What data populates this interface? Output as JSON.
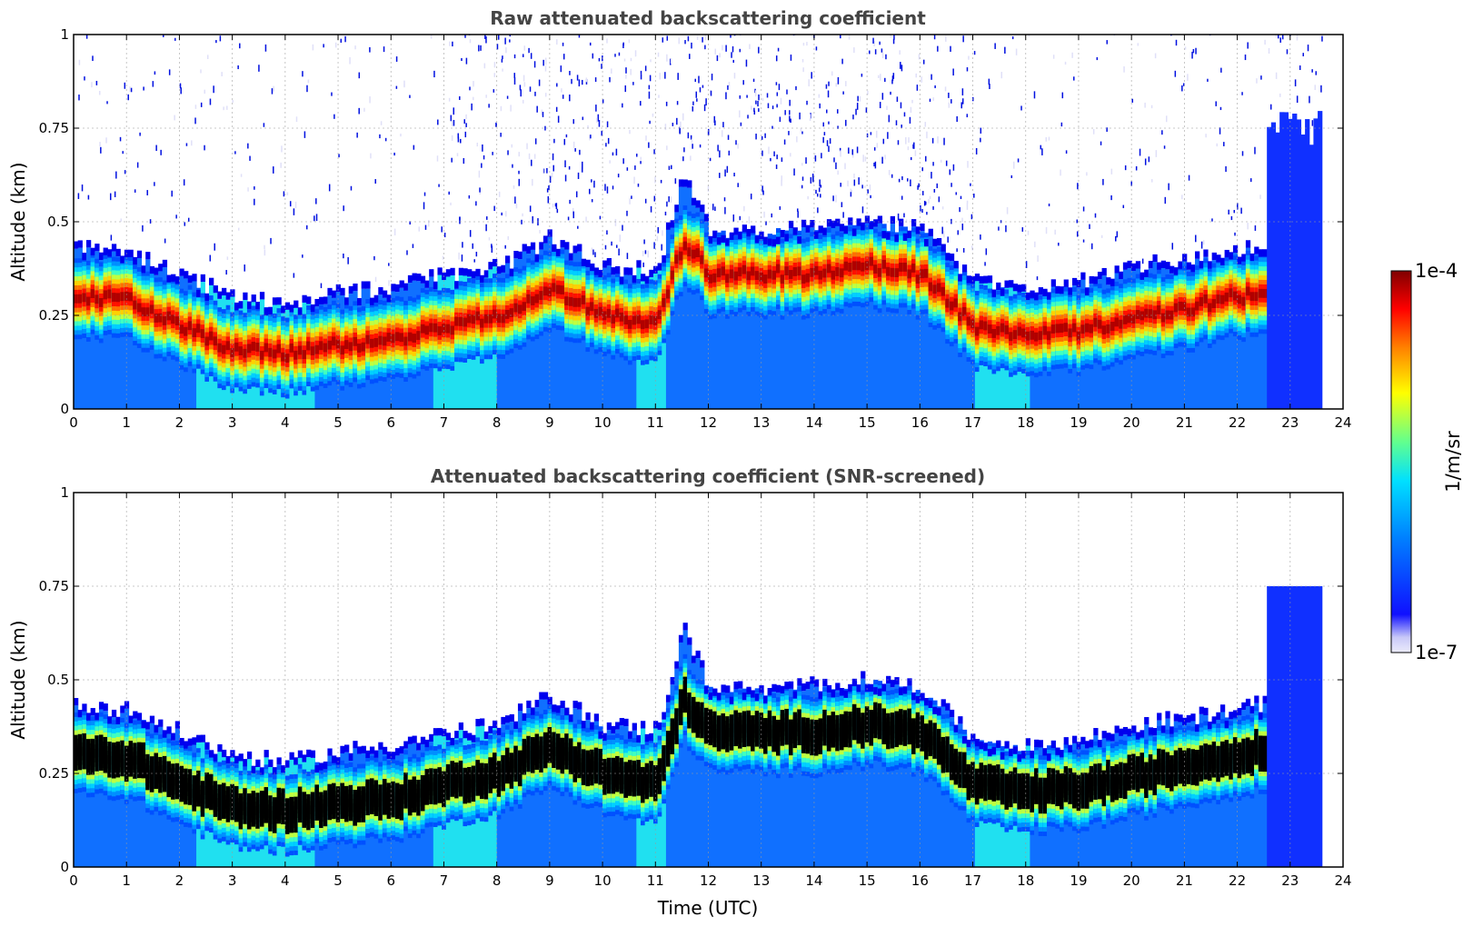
{
  "chart_data": [
    {
      "type": "heatmap",
      "title": "Raw attenuated backscattering coefficient",
      "xlabel": "",
      "ylabel": "Altitude (km)",
      "xlim": [
        0,
        24
      ],
      "ylim": [
        0,
        1
      ],
      "x_ticks": [
        "0",
        "1",
        "2",
        "3",
        "4",
        "5",
        "6",
        "7",
        "8",
        "9",
        "10",
        "11",
        "12",
        "13",
        "14",
        "15",
        "16",
        "17",
        "18",
        "19",
        "20",
        "21",
        "22",
        "23",
        "24"
      ],
      "y_ticks": [
        "0",
        "0.25",
        "0.5",
        "0.75",
        "1"
      ],
      "grid": true,
      "data_end_hour": 23.55,
      "layer_top_km": [
        {
          "t": 0,
          "km": 0.42
        },
        {
          "t": 1,
          "km": 0.4
        },
        {
          "t": 2,
          "km": 0.34
        },
        {
          "t": 3,
          "km": 0.28
        },
        {
          "t": 4,
          "km": 0.26
        },
        {
          "t": 5,
          "km": 0.29
        },
        {
          "t": 6,
          "km": 0.31
        },
        {
          "t": 7,
          "km": 0.34
        },
        {
          "t": 8,
          "km": 0.36
        },
        {
          "t": 9,
          "km": 0.44
        },
        {
          "t": 10,
          "km": 0.36
        },
        {
          "t": 11,
          "km": 0.35
        },
        {
          "t": 11.5,
          "km": 0.62
        },
        {
          "t": 12,
          "km": 0.46
        },
        {
          "t": 13,
          "km": 0.45
        },
        {
          "t": 14,
          "km": 0.47
        },
        {
          "t": 15,
          "km": 0.48
        },
        {
          "t": 16,
          "km": 0.46
        },
        {
          "t": 17,
          "km": 0.32
        },
        {
          "t": 18,
          "km": 0.3
        },
        {
          "t": 19,
          "km": 0.32
        },
        {
          "t": 20,
          "km": 0.36
        },
        {
          "t": 21,
          "km": 0.38
        },
        {
          "t": 22,
          "km": 0.4
        },
        {
          "t": 22.5,
          "km": 0.42
        }
      ],
      "peak_layer_km": [
        {
          "t": 0,
          "km": 0.3
        },
        {
          "t": 1,
          "km": 0.29
        },
        {
          "t": 2,
          "km": 0.22
        },
        {
          "t": 3,
          "km": 0.16
        },
        {
          "t": 4,
          "km": 0.15
        },
        {
          "t": 5,
          "km": 0.17
        },
        {
          "t": 6,
          "km": 0.18
        },
        {
          "t": 7,
          "km": 0.22
        },
        {
          "t": 8,
          "km": 0.25
        },
        {
          "t": 9,
          "km": 0.32
        },
        {
          "t": 10,
          "km": 0.25
        },
        {
          "t": 11,
          "km": 0.22
        },
        {
          "t": 11.5,
          "km": 0.45
        },
        {
          "t": 12,
          "km": 0.36
        },
        {
          "t": 13,
          "km": 0.36
        },
        {
          "t": 14,
          "km": 0.36
        },
        {
          "t": 15,
          "km": 0.38
        },
        {
          "t": 16,
          "km": 0.36
        },
        {
          "t": 17,
          "km": 0.22
        },
        {
          "t": 18,
          "km": 0.2
        },
        {
          "t": 19,
          "km": 0.21
        },
        {
          "t": 20,
          "km": 0.24
        },
        {
          "t": 21,
          "km": 0.27
        },
        {
          "t": 22,
          "km": 0.3
        },
        {
          "t": 22.5,
          "km": 0.31
        }
      ]
    },
    {
      "type": "heatmap",
      "title": "Attenuated backscattering coefficient (SNR-screened)",
      "xlabel": "Time (UTC)",
      "ylabel": "Altitude (km)",
      "xlim": [
        0,
        24
      ],
      "ylim": [
        0,
        1
      ],
      "x_ticks": [
        "0",
        "1",
        "2",
        "3",
        "4",
        "5",
        "6",
        "7",
        "8",
        "9",
        "10",
        "11",
        "12",
        "13",
        "14",
        "15",
        "16",
        "17",
        "18",
        "19",
        "20",
        "21",
        "22",
        "23",
        "24"
      ],
      "y_ticks": [
        "0",
        "0.25",
        "0.5",
        "0.75",
        "1"
      ],
      "grid": true,
      "data_end_hour": 23.55,
      "after_22_5_top_km": 0.75
    }
  ],
  "colorbar": {
    "label": "1/m/sr",
    "max_label": "1e-4",
    "min_label": "1e-7",
    "scale": "log",
    "colormap": "jet",
    "colors": [
      "#ececfb",
      "#0000ff",
      "#0080ff",
      "#00ffff",
      "#80ff80",
      "#ffff00",
      "#ff8000",
      "#ff0000",
      "#800000"
    ]
  }
}
